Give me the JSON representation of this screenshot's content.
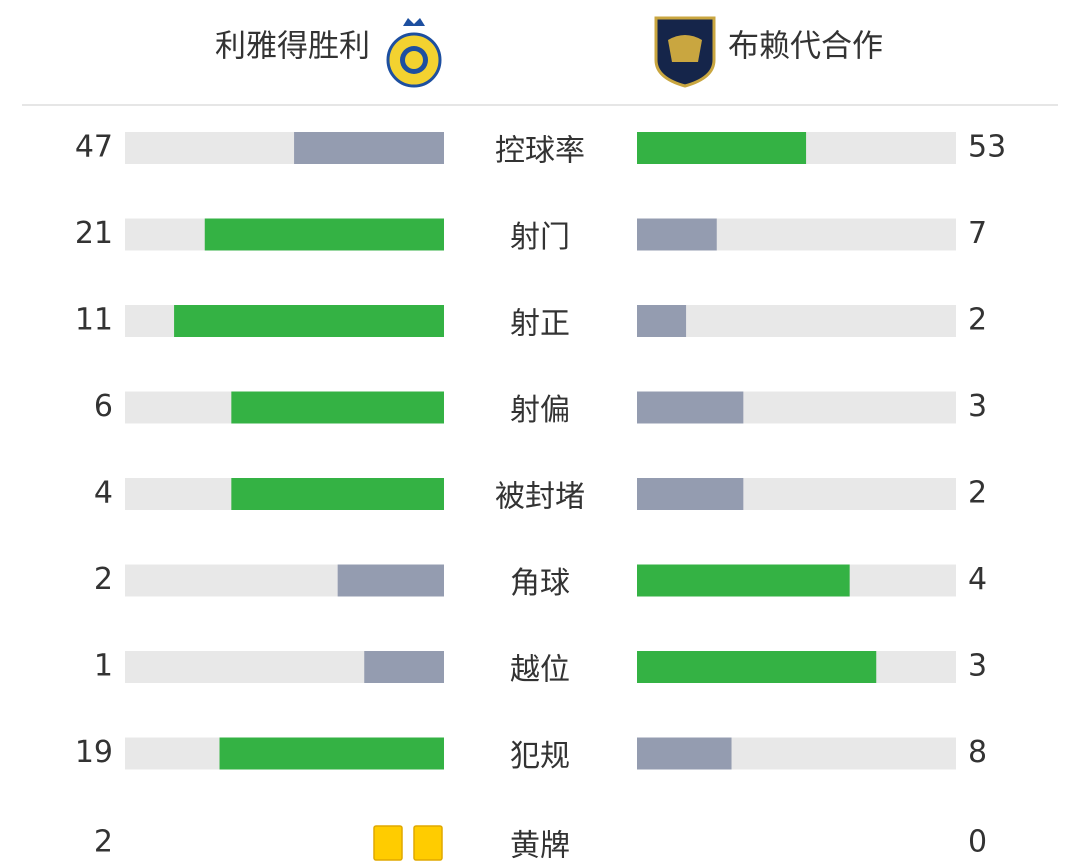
{
  "home": {
    "name": "利雅得胜利"
  },
  "away": {
    "name": "布赖代合作"
  },
  "stats": [
    {
      "label": "控球率",
      "home": 47,
      "away": 53
    },
    {
      "label": "射门",
      "home": 21,
      "away": 7
    },
    {
      "label": "射正",
      "home": 11,
      "away": 2
    },
    {
      "label": "射偏",
      "home": 6,
      "away": 3
    },
    {
      "label": "被封堵",
      "home": 4,
      "away": 2
    },
    {
      "label": "角球",
      "home": 2,
      "away": 4
    },
    {
      "label": "越位",
      "home": 1,
      "away": 3
    },
    {
      "label": "犯规",
      "home": 19,
      "away": 8
    }
  ],
  "yellow_cards": {
    "label": "黄牌",
    "home": 2,
    "away": 0
  }
}
